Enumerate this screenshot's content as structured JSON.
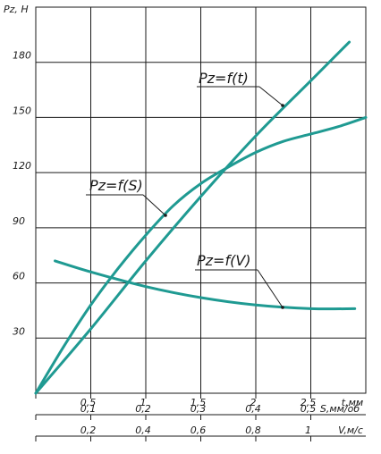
{
  "chart_data": {
    "type": "line",
    "title": "",
    "ylabel": "Pz, H",
    "ylim": [
      0,
      210
    ],
    "yticks": [
      30,
      60,
      90,
      120,
      150,
      180
    ],
    "ytick_labels": [
      "30",
      "60",
      "90",
      "120",
      "150",
      "180"
    ],
    "grid": true,
    "x_axes": [
      {
        "label": "t,мм",
        "range": [
          0,
          3.0
        ],
        "ticks": [
          0.5,
          1,
          1.5,
          2,
          2.5
        ],
        "tick_labels": [
          "0,5",
          "1",
          "1,5",
          "2",
          "2,5"
        ]
      },
      {
        "label": "S,мм/об",
        "range": [
          0,
          0.6
        ],
        "ticks": [
          0.1,
          0.2,
          0.3,
          0.4,
          0.5
        ],
        "tick_labels": [
          "0,1",
          "0,2",
          "0,3",
          "0,4",
          "0,5"
        ]
      },
      {
        "label": "V,м/с",
        "range": [
          0,
          1.2
        ],
        "ticks": [
          0.2,
          0.4,
          0.6,
          0.8,
          1
        ],
        "tick_labels": [
          "0,2",
          "0,4",
          "0,6",
          "0,8",
          "1"
        ]
      }
    ],
    "series": [
      {
        "name": "Pz=f(t)",
        "axis": 0,
        "x": [
          0,
          0.5,
          1.0,
          1.5,
          2.0,
          2.5,
          2.85
        ],
        "y": [
          0,
          35,
          72,
          107,
          140,
          170,
          191
        ]
      },
      {
        "name": "Pz=f(S)",
        "axis": 1,
        "x": [
          0,
          0.05,
          0.1,
          0.15,
          0.2,
          0.25,
          0.3,
          0.35,
          0.4,
          0.45,
          0.5,
          0.55,
          0.6
        ],
        "y": [
          0,
          25,
          48,
          68,
          86,
          102,
          114,
          123,
          131,
          137,
          141,
          145,
          150
        ]
      },
      {
        "name": "Pz=f(V)",
        "axis": 2,
        "x": [
          0.07,
          0.2,
          0.4,
          0.6,
          0.8,
          1.0,
          1.16
        ],
        "y": [
          72,
          66,
          58,
          52,
          48,
          46,
          46
        ]
      }
    ]
  }
}
